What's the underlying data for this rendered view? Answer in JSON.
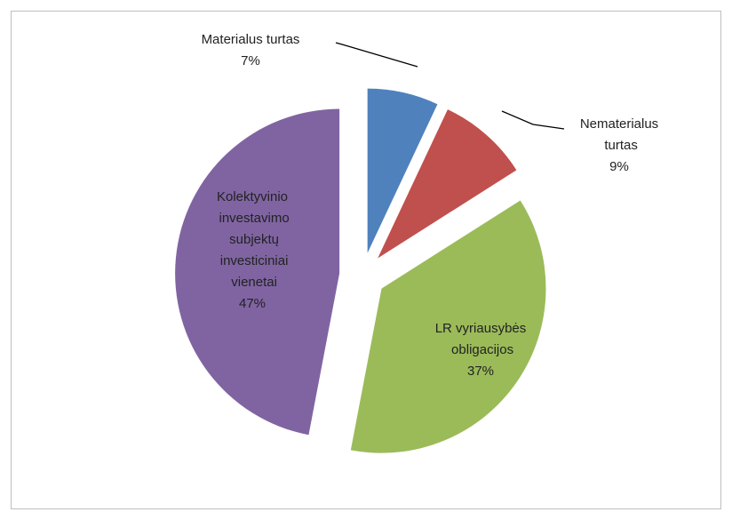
{
  "chart_data": {
    "type": "pie",
    "categories": [
      "Materialus turtas",
      "Nematerialus turtas",
      "LR vyriausybės obligacijos",
      "Kolektyvinio investavimo subjektų investiciniai vienetai"
    ],
    "values": [
      7,
      9,
      37,
      47
    ],
    "value_labels": [
      "7%",
      "9%",
      "37%",
      "47%"
    ],
    "colors": [
      "#4f81bd",
      "#c0504d",
      "#9bbb59",
      "#8064a2"
    ]
  }
}
